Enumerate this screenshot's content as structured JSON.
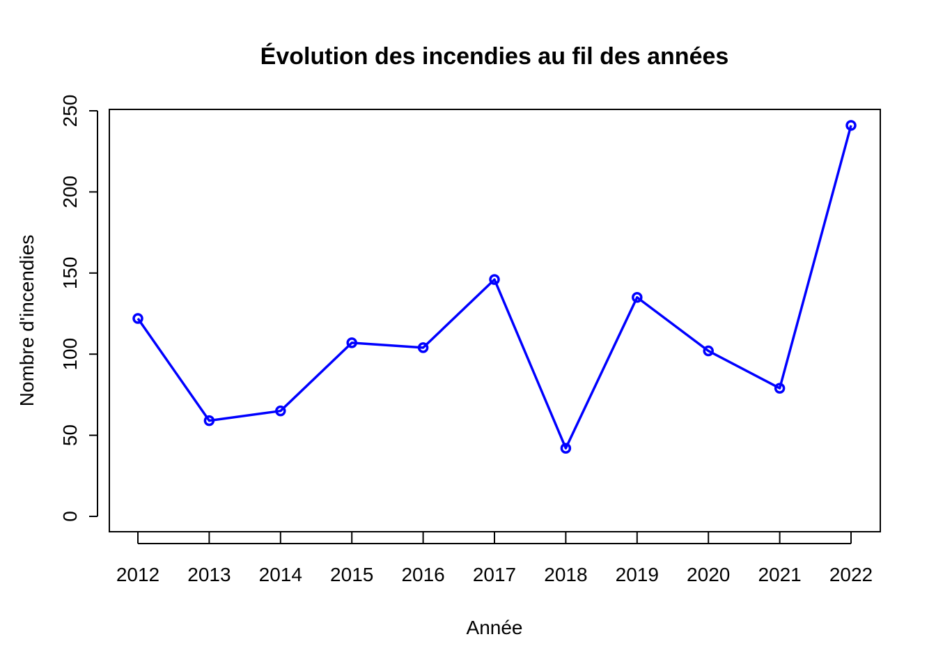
{
  "chart_data": {
    "type": "line",
    "title": "Évolution des incendies au fil des années",
    "xlabel": "Année",
    "ylabel": "Nombre d'incendies",
    "categories": [
      "2012",
      "2013",
      "2014",
      "2015",
      "2016",
      "2017",
      "2018",
      "2019",
      "2020",
      "2021",
      "2022"
    ],
    "series": [
      {
        "values": [
          122,
          59,
          65,
          107,
          104,
          146,
          42,
          135,
          102,
          79,
          241
        ]
      }
    ],
    "yticks": [
      "0",
      "50",
      "100",
      "150",
      "200",
      "250"
    ],
    "ylim": [
      0,
      250
    ],
    "marker": "circle",
    "grid": false,
    "color": "#0000ff"
  }
}
